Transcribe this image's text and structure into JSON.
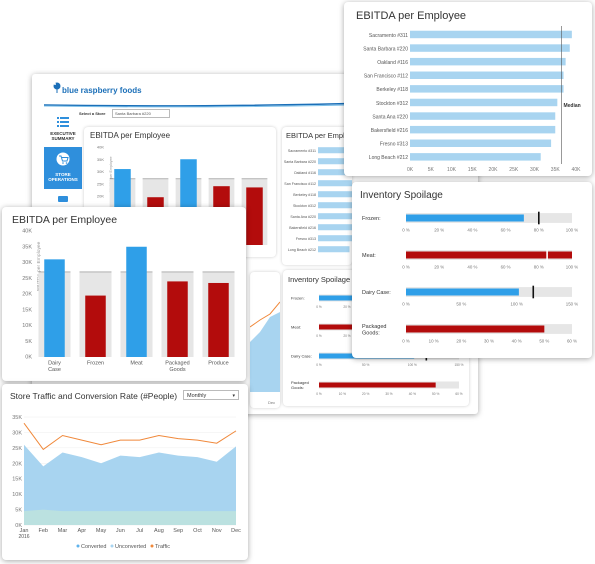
{
  "brand": {
    "name": "blue raspberry foods",
    "icon": "raspberry-logo-icon"
  },
  "store_select": {
    "label": "Select a Store",
    "value": "Santa Barbara #220"
  },
  "nav": [
    {
      "label": "EXECUTIVE SUMMARY",
      "icon": "list-icon"
    },
    {
      "label": "STORE OPERATIONS",
      "icon": "cart-icon",
      "active": true
    }
  ],
  "colors": {
    "blue": "#2f9fe8",
    "red": "#b30c0c",
    "light_blue": "#a8d4f0",
    "grey": "#e6e6e6",
    "nav_blue": "#2f8fdc"
  },
  "ebitda_dept": {
    "title": "EBITDA per Employee",
    "y_axis_title": "EBITDA per Employee",
    "y_ticks": [
      "0K",
      "5K",
      "10K",
      "15K",
      "20K",
      "25K",
      "30K",
      "35K",
      "40K"
    ],
    "median_value": 27000,
    "categories": [
      "Dairy Case",
      "Frozen",
      "Meat",
      "Packaged Goods",
      "Produce"
    ],
    "values": [
      31000,
      19500,
      35000,
      24000,
      23500
    ],
    "status": [
      "above",
      "below",
      "above",
      "below",
      "below"
    ]
  },
  "ebitda_store": {
    "title": "EBITDA per Employee",
    "x_ticks": [
      "0K",
      "5K",
      "10K",
      "15K",
      "20K",
      "25K",
      "30K",
      "35K",
      "40K"
    ],
    "median_label": "Median",
    "median_value": 36500,
    "stores": [
      "Sacramento #311",
      "Santa Barbara #220",
      "Oakland #116",
      "San Francisco #112",
      "Berkeley #118",
      "Stockton #312",
      "Santa Ana #220",
      "Bakersfield #216",
      "Fresno #313",
      "Long Beach #212"
    ],
    "values": [
      39000,
      38500,
      37500,
      37000,
      37000,
      35500,
      35000,
      35000,
      34000,
      31500
    ]
  },
  "inventory": {
    "title": "Inventory Spoilage",
    "rows": [
      {
        "label": "Frozen:",
        "value": 71,
        "target": 80,
        "max": 100,
        "ticks": [
          "0 %",
          "20 %",
          "40 %",
          "60 %",
          "80 %",
          "100 %"
        ],
        "color": "blue"
      },
      {
        "label": "Meat:",
        "value": 100,
        "target": 85,
        "max": 100,
        "ticks": [
          "0 %",
          "20 %",
          "40 %",
          "60 %",
          "80 %",
          "100 %"
        ],
        "color": "red"
      },
      {
        "label": "Dairy Case:",
        "value": 102,
        "target": 115,
        "max": 150,
        "ticks": [
          "0 %",
          "50 %",
          "100 %",
          "150 %"
        ],
        "color": "blue"
      },
      {
        "label": "Packaged Goods:",
        "value": 50,
        "target": null,
        "max": 60,
        "ticks": [
          "0 %",
          "10 %",
          "20 %",
          "30 %",
          "40 %",
          "50 %",
          "60 %"
        ],
        "color": "red"
      }
    ]
  },
  "traffic": {
    "title": "Store Traffic and Conversion Rate (#People)",
    "period": "Monthly",
    "y_ticks": [
      "0K",
      "5K",
      "10K",
      "15K",
      "20K",
      "25K",
      "30K",
      "35K"
    ],
    "months": [
      "Jan",
      "Feb",
      "Mar",
      "Apr",
      "May",
      "Jun",
      "Jul",
      "Aug",
      "Sep",
      "Oct",
      "Nov",
      "Dec"
    ],
    "year": "2016",
    "traffic": [
      33000,
      24500,
      29000,
      27500,
      26000,
      27500,
      27500,
      29000,
      28000,
      27500,
      26500,
      30500
    ],
    "converted": [
      26000,
      19000,
      23500,
      22000,
      20000,
      22500,
      22000,
      23500,
      22500,
      22000,
      20500,
      25500
    ],
    "unconverted": [
      4500,
      5000,
      4500,
      4500,
      4500,
      4500,
      4500,
      4500,
      4500,
      4500,
      4500,
      4500
    ],
    "legend": [
      "Converted",
      "Unconverted",
      "Traffic"
    ]
  }
}
